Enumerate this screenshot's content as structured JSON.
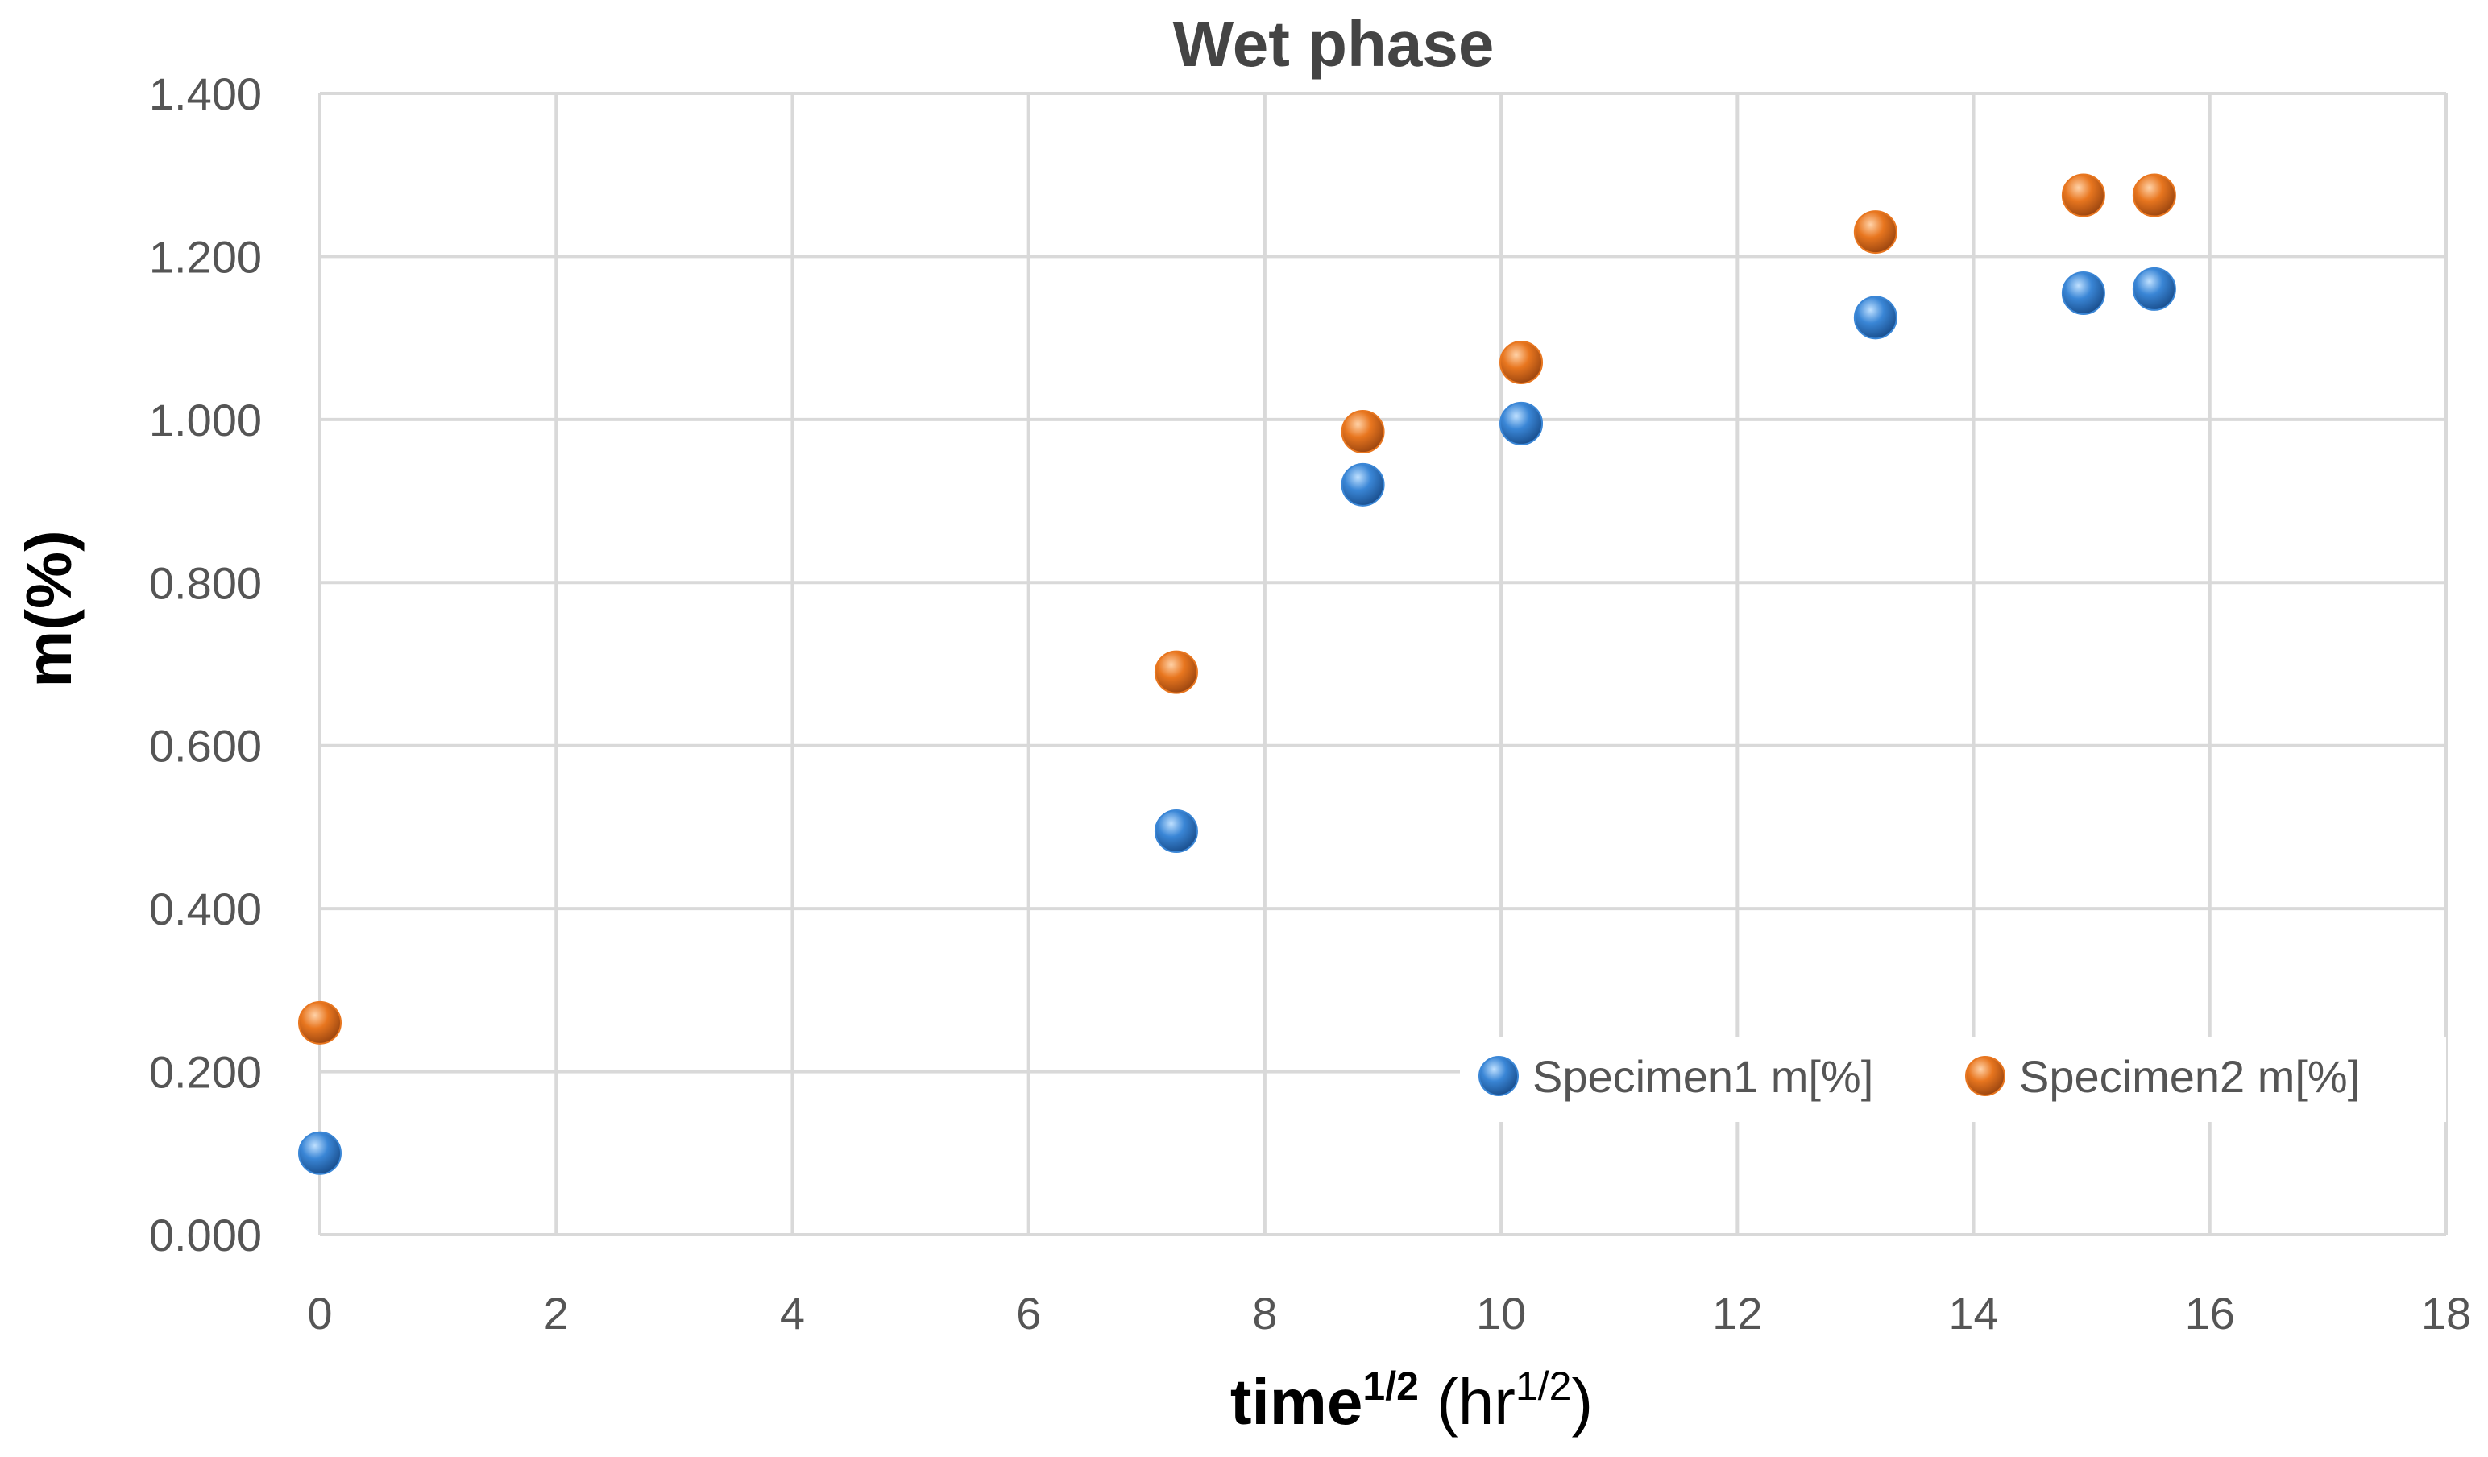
{
  "chart_data": {
    "type": "scatter",
    "title": "Wet phase",
    "xlabel": {
      "base": "time",
      "exponent": "1/2",
      "unit_open": " (hr",
      "unit_exponent": "1/2",
      "unit_close": ")"
    },
    "ylabel": "m(%)",
    "xlim": [
      0,
      18
    ],
    "ylim": [
      0,
      1.4
    ],
    "x_ticks": [
      "0",
      "2",
      "4",
      "6",
      "8",
      "10",
      "12",
      "14",
      "16",
      "18"
    ],
    "y_ticks": [
      "0.000",
      "0.200",
      "0.400",
      "0.600",
      "0.800",
      "1.000",
      "1.200",
      "1.400"
    ],
    "grid": true,
    "legend_position": "bottom-right",
    "series": [
      {
        "name": "Specimen1  m[%]",
        "color": "#3a86d6",
        "x": [
          0,
          7.25,
          8.83,
          10.17,
          13.17,
          14.93,
          15.53
        ],
        "y": [
          0.1,
          0.495,
          0.92,
          0.995,
          1.125,
          1.155,
          1.16
        ]
      },
      {
        "name": "Specimen2  m[%]",
        "color": "#e8761f",
        "x": [
          0,
          7.25,
          8.83,
          10.17,
          13.17,
          14.93,
          15.53
        ],
        "y": [
          0.26,
          0.69,
          0.985,
          1.07,
          1.23,
          1.275,
          1.275
        ]
      }
    ]
  }
}
